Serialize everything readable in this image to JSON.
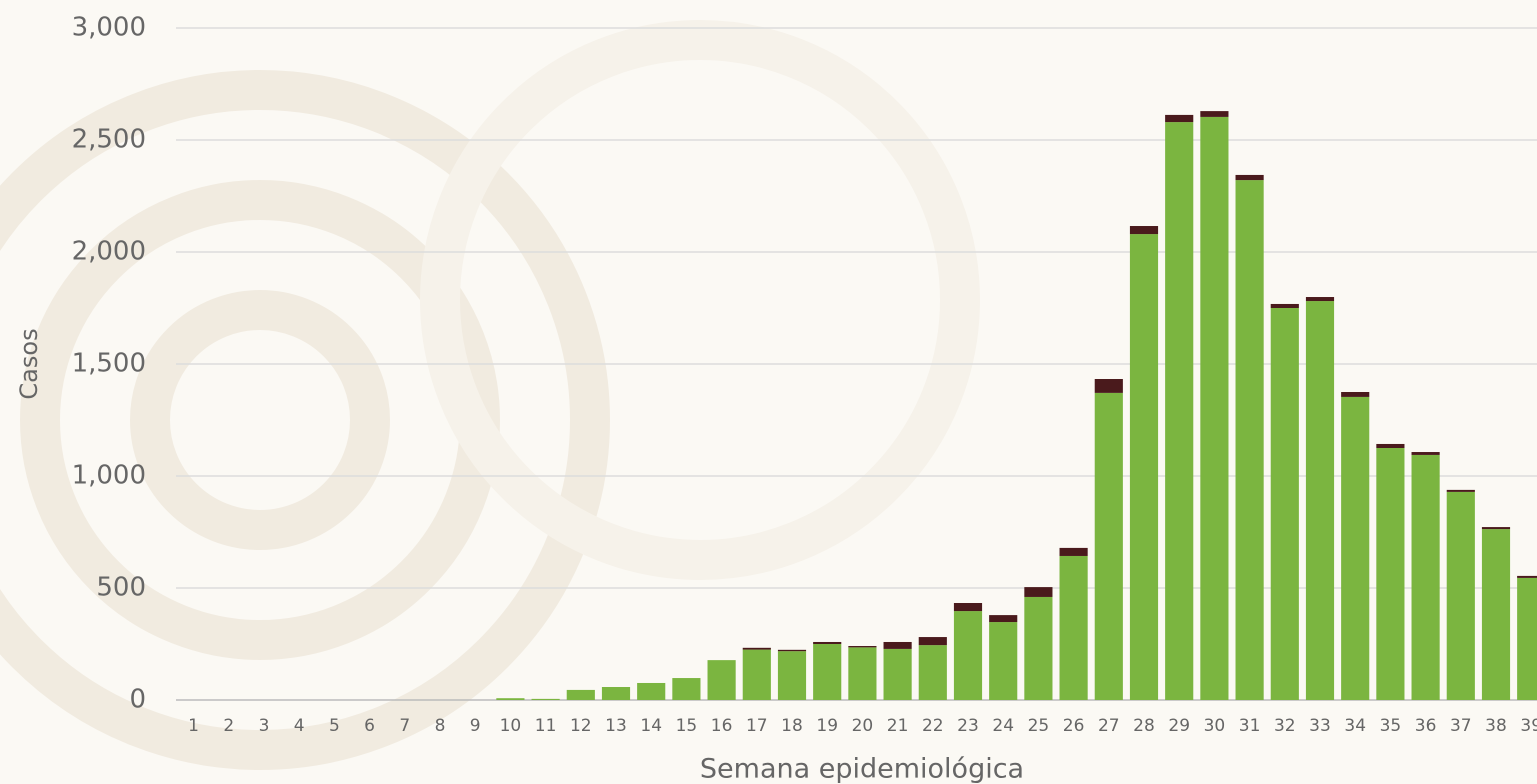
{
  "chart_data": {
    "type": "stacked_bar",
    "x_label": "Semana epidemiológica",
    "y_label": "Casos",
    "categories": [
      "1",
      "2",
      "3",
      "4",
      "5",
      "6",
      "7",
      "8",
      "9",
      "10",
      "11",
      "12",
      "13",
      "14",
      "15",
      "16",
      "17",
      "18",
      "19",
      "20",
      "21",
      "22",
      "23",
      "24",
      "25",
      "26",
      "27",
      "28",
      "29",
      "30",
      "31",
      "32",
      "33",
      "34",
      "35",
      "36",
      "37",
      "38",
      "39"
    ],
    "series": [
      {
        "color": "#7bb540",
        "values": [
          0,
          0,
          0,
          0,
          0,
          0,
          0,
          0,
          0,
          8,
          5,
          45,
          58,
          76,
          98,
          178,
          225,
          218,
          250,
          235,
          228,
          245,
          397,
          348,
          460,
          643,
          1371,
          2080,
          2580,
          2603,
          2321,
          1750,
          1781,
          1353,
          1125,
          1094,
          929,
          763,
          545
        ]
      },
      {
        "color": "#4a1a1c",
        "values": [
          0,
          0,
          0,
          0,
          0,
          0,
          0,
          0,
          0,
          0,
          0,
          0,
          0,
          0,
          0,
          0,
          8,
          6,
          9,
          6,
          31,
          36,
          36,
          31,
          44,
          36,
          62,
          36,
          32,
          26,
          23,
          18,
          18,
          22,
          18,
          13,
          9,
          9,
          9
        ]
      }
    ],
    "ylim": [
      0,
      3000
    ],
    "yticks": [
      0,
      500,
      {
        "value": 1000,
        "label": "1,000"
      },
      {
        "value": 1500,
        "label": "1,500"
      },
      {
        "value": 2000,
        "label": "2,000"
      },
      {
        "value": 2500,
        "label": "2,500"
      },
      {
        "value": 3000,
        "label": "3,000"
      }
    ],
    "grid": true
  }
}
